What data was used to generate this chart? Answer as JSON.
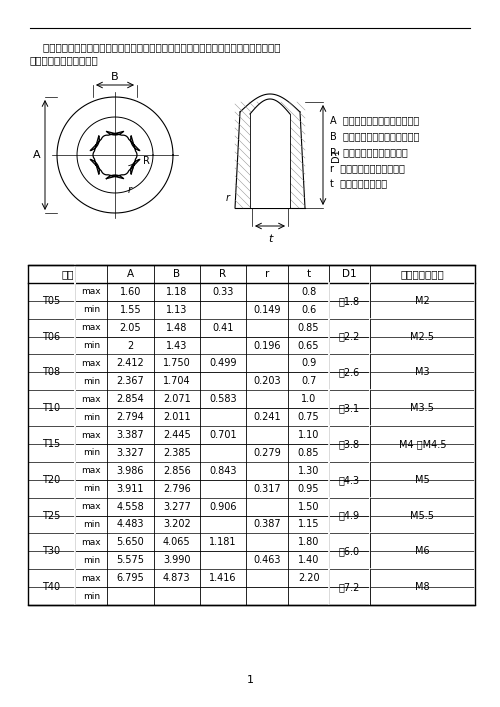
{
  "page_width": 5.0,
  "page_height": 7.07,
  "dpi": 100,
  "bg_color": "#ffffff",
  "intro_text_line1": "    本列所列为中国标准的沉孔可转位刀片用紧固螺钉头部内六角花形的型式和尺寸。欧美",
  "intro_text_line2": "尺寸系列与此略有不同。",
  "legend_items": [
    [
      "A",
      "内六角花型凸圆弧对边宽度；"
    ],
    [
      "B",
      "内六角花型凹圆弧对边宽度；"
    ],
    [
      "R",
      "内六角花型凹圆弧半径；"
    ],
    [
      "r",
      "内六角花型凸圆弧半径；"
    ],
    [
      "t",
      "内六角花型深度。"
    ]
  ],
  "groups": [
    {
      "name": "T05",
      "max": [
        "1.60",
        "1.18",
        "0.33",
        "",
        "0.8"
      ],
      "min": [
        "1.55",
        "1.13",
        "",
        "0.149",
        "0.6"
      ],
      "d1": "约1.8",
      "screw": "M2"
    },
    {
      "name": "T06",
      "max": [
        "2.05",
        "1.48",
        "0.41",
        "",
        "0.85"
      ],
      "min": [
        "2",
        "1.43",
        "",
        "0.196",
        "0.65"
      ],
      "d1": "约2.2",
      "screw": "M2.5"
    },
    {
      "name": "T08",
      "max": [
        "2.412",
        "1.750",
        "0.499",
        "",
        "0.9"
      ],
      "min": [
        "2.367",
        "1.704",
        "",
        "0.203",
        "0.7"
      ],
      "d1": "约2.6",
      "screw": "M3"
    },
    {
      "name": "T10",
      "max": [
        "2.854",
        "2.071",
        "0.583",
        "",
        "1.0"
      ],
      "min": [
        "2.794",
        "2.011",
        "",
        "0.241",
        "0.75"
      ],
      "d1": "约3.1",
      "screw": "M3.5"
    },
    {
      "name": "T15",
      "max": [
        "3.387",
        "2.445",
        "0.701",
        "",
        "1.10"
      ],
      "min": [
        "3.327",
        "2.385",
        "",
        "0.279",
        "0.85"
      ],
      "d1": "约3.8",
      "screw": "M4 和M4.5"
    },
    {
      "name": "T20",
      "max": [
        "3.986",
        "2.856",
        "0.843",
        "",
        "1.30"
      ],
      "min": [
        "3.911",
        "2.796",
        "",
        "0.317",
        "0.95"
      ],
      "d1": "约4.3",
      "screw": "M5"
    },
    {
      "name": "T25",
      "max": [
        "4.558",
        "3.277",
        "0.906",
        "",
        "1.50"
      ],
      "min": [
        "4.483",
        "3.202",
        "",
        "0.387",
        "1.15"
      ],
      "d1": "约4.9",
      "screw": "M5.5"
    },
    {
      "name": "T30",
      "max": [
        "5.650",
        "4.065",
        "1.181",
        "",
        "1.80"
      ],
      "min": [
        "5.575",
        "3.990",
        "",
        "0.463",
        "1.40"
      ],
      "d1": "约6.0",
      "screw": "M6"
    },
    {
      "name": "T40",
      "max": [
        "6.795",
        "4.873",
        "1.416",
        "",
        "2.20"
      ],
      "min": [
        "",
        "",
        "",
        "",
        ""
      ],
      "d1": "约7.2",
      "screw": "M8"
    }
  ]
}
